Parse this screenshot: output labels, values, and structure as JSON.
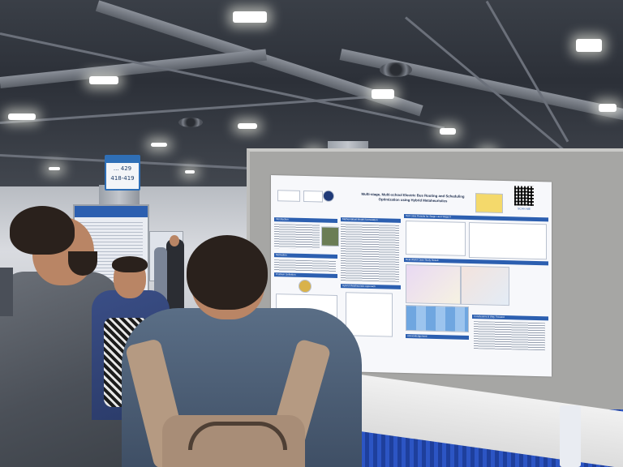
{
  "scene": {
    "booth_sign": {
      "lines": [
        "... 429",
        "418-419"
      ]
    },
    "poster": {
      "title_line1": "Multi-stage, Multi-school Electric Bus Routing and Scheduling",
      "title_line2": "Optimization using Hybrid Metaheuristics",
      "sections_left": [
        "Introduction",
        "Mathematical Model Formulation",
        "Hybrid Metaheuristic Approach",
        "Motivation",
        "Problem Definition"
      ],
      "sections_right": [
        "Test Case Results for Stage I and Stage II",
        "Real World Case Study Result",
        "Conclusions & Way Forward",
        "Acknowledgement"
      ],
      "qr_caption": "SCAN ME"
    },
    "colors": {
      "poster_header": "#2c5fb0",
      "board": "#a6a6a4",
      "skirt": "#2c55c4"
    }
  }
}
